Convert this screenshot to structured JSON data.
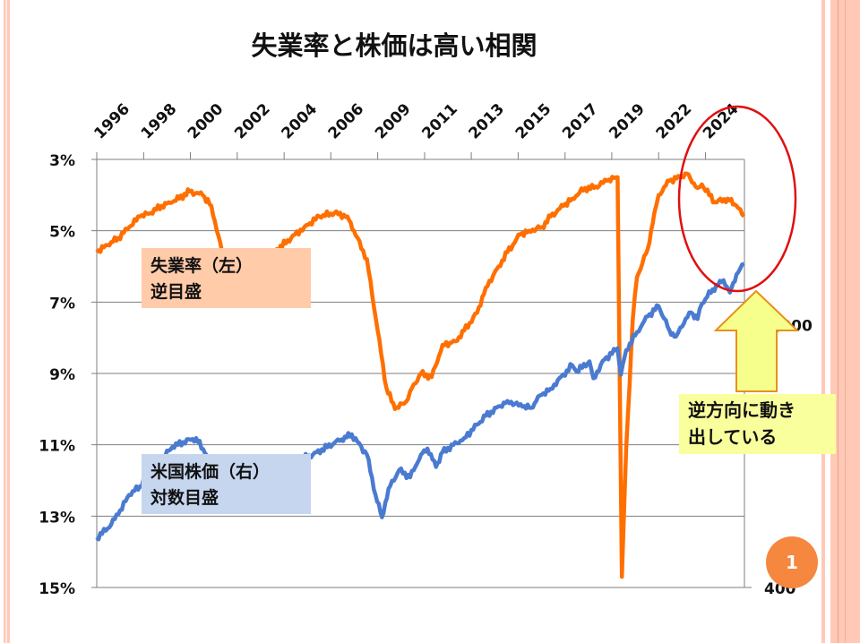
{
  "slide": {
    "title": "失業率と株価は高い相関",
    "page_number": "1",
    "unemployment_label": {
      "line1": "失業率（左）",
      "line2": "逆目盛"
    },
    "stock_label": {
      "line1": "米国株価（右）",
      "line2": "対数目盛"
    },
    "callout": {
      "line1": "逆方向に動き",
      "line2": "出している"
    }
  },
  "colors": {
    "unemployment": "#FF6F00",
    "stock": "#4A7BD0",
    "highlight": "#E01010",
    "arrow_fill": "#F6FF8C",
    "arrow_stroke": "#E8901A",
    "callout_bg": "#F9FF9C",
    "badge": "#F5873F",
    "border": "#FFC9B6"
  },
  "chart_data": {
    "type": "line",
    "title": "失業率と株価は高い相関",
    "x_tick_labels": [
      "1996",
      "1998",
      "2000",
      "2002",
      "2004",
      "2006",
      "2009",
      "2011",
      "2013",
      "2015",
      "2017",
      "2019",
      "2022",
      "2024"
    ],
    "x_tick_years": [
      1996.0,
      1998.17,
      2000.33,
      2002.5,
      2004.67,
      2006.83,
      2009.0,
      2011.17,
      2013.33,
      2015.5,
      2017.67,
      2019.83,
      2022.0,
      2024.17
    ],
    "xlim": [
      1996.0,
      2025.97
    ],
    "left_axis": {
      "label": "unemployment rate (inverted)",
      "ticks": [
        "3%",
        "5%",
        "7%",
        "9%",
        "11%",
        "13%",
        "15%"
      ],
      "tick_values": [
        3,
        5,
        7,
        9,
        11,
        13,
        15
      ],
      "ylim": [
        3,
        15
      ],
      "inverted": true
    },
    "right_axis": {
      "scale": "log",
      "ticks": [
        "4,000",
        "400"
      ],
      "tick_values": [
        4000,
        400
      ],
      "ylim": [
        400,
        17000
      ]
    },
    "grid": true,
    "series": [
      {
        "name": "失業率",
        "axis": "left",
        "points": [
          [
            1996.0,
            5.6
          ],
          [
            1996.5,
            5.4
          ],
          [
            1997.0,
            5.2
          ],
          [
            1997.5,
            4.9
          ],
          [
            1998.0,
            4.6
          ],
          [
            1998.5,
            4.5
          ],
          [
            1999.0,
            4.3
          ],
          [
            1999.5,
            4.2
          ],
          [
            2000.3,
            3.9
          ],
          [
            2000.9,
            4.0
          ],
          [
            2001.3,
            4.3
          ],
          [
            2001.8,
            5.6
          ],
          [
            2002.5,
            5.8
          ],
          [
            2003.5,
            6.2
          ],
          [
            2004.0,
            5.7
          ],
          [
            2005.0,
            5.2
          ],
          [
            2005.6,
            4.9
          ],
          [
            2006.3,
            4.6
          ],
          [
            2007.0,
            4.5
          ],
          [
            2007.6,
            4.6
          ],
          [
            2007.9,
            5.0
          ],
          [
            2008.5,
            5.8
          ],
          [
            2009.0,
            7.8
          ],
          [
            2009.4,
            9.4
          ],
          [
            2009.8,
            10.0
          ],
          [
            2010.3,
            9.8
          ],
          [
            2010.5,
            9.5
          ],
          [
            2011.0,
            9.0
          ],
          [
            2011.5,
            9.1
          ],
          [
            2012.0,
            8.2
          ],
          [
            2012.6,
            8.1
          ],
          [
            2013.0,
            7.8
          ],
          [
            2013.6,
            7.3
          ],
          [
            2014.0,
            6.6
          ],
          [
            2014.6,
            6.0
          ],
          [
            2015.0,
            5.6
          ],
          [
            2015.6,
            5.1
          ],
          [
            2016.0,
            5.0
          ],
          [
            2016.6,
            4.9
          ],
          [
            2017.0,
            4.6
          ],
          [
            2017.6,
            4.3
          ],
          [
            2018.0,
            4.1
          ],
          [
            2018.6,
            3.8
          ],
          [
            2019.0,
            3.8
          ],
          [
            2019.6,
            3.6
          ],
          [
            2020.1,
            3.5
          ],
          [
            2020.3,
            14.7
          ],
          [
            2020.5,
            11.1
          ],
          [
            2020.8,
            7.5
          ],
          [
            2021.0,
            6.3
          ],
          [
            2021.5,
            5.5
          ],
          [
            2021.8,
            4.5
          ],
          [
            2022.0,
            4.0
          ],
          [
            2022.5,
            3.6
          ],
          [
            2023.0,
            3.5
          ],
          [
            2023.3,
            3.4
          ],
          [
            2023.8,
            3.8
          ],
          [
            2024.0,
            3.7
          ],
          [
            2024.6,
            4.2
          ],
          [
            2025.2,
            4.1
          ],
          [
            2025.6,
            4.3
          ],
          [
            2025.95,
            4.6
          ]
        ]
      },
      {
        "name": "米国株価",
        "axis": "right",
        "points": [
          [
            1996.0,
            620
          ],
          [
            1996.5,
            670
          ],
          [
            1997.0,
            760
          ],
          [
            1997.5,
            900
          ],
          [
            1998.0,
            970
          ],
          [
            1998.5,
            1130
          ],
          [
            1998.7,
            990
          ],
          [
            1999.0,
            1230
          ],
          [
            1999.5,
            1370
          ],
          [
            2000.0,
            1430
          ],
          [
            2000.6,
            1480
          ],
          [
            2001.0,
            1300
          ],
          [
            2001.7,
            1050
          ],
          [
            2002.0,
            1140
          ],
          [
            2002.75,
            820
          ],
          [
            2003.2,
            850
          ],
          [
            2003.5,
            990
          ],
          [
            2004.0,
            1130
          ],
          [
            2005.0,
            1200
          ],
          [
            2006.0,
            1280
          ],
          [
            2007.0,
            1420
          ],
          [
            2007.8,
            1530
          ],
          [
            2008.5,
            1280
          ],
          [
            2008.9,
            900
          ],
          [
            2009.2,
            740
          ],
          [
            2009.5,
            950
          ],
          [
            2010.0,
            1120
          ],
          [
            2010.5,
            1050
          ],
          [
            2011.0,
            1280
          ],
          [
            2011.3,
            1350
          ],
          [
            2011.7,
            1150
          ],
          [
            2012.0,
            1310
          ],
          [
            2013.0,
            1480
          ],
          [
            2014.0,
            1800
          ],
          [
            2015.0,
            2050
          ],
          [
            2015.7,
            1950
          ],
          [
            2016.1,
            1930
          ],
          [
            2016.5,
            2150
          ],
          [
            2017.0,
            2280
          ],
          [
            2018.0,
            2800
          ],
          [
            2018.2,
            2650
          ],
          [
            2018.8,
            2900
          ],
          [
            2018.98,
            2500
          ],
          [
            2019.5,
            2950
          ],
          [
            2020.1,
            3250
          ],
          [
            2020.25,
            2580
          ],
          [
            2020.5,
            3200
          ],
          [
            2021.0,
            3750
          ],
          [
            2021.5,
            4300
          ],
          [
            2022.0,
            4700
          ],
          [
            2022.5,
            3800
          ],
          [
            2022.8,
            3600
          ],
          [
            2023.0,
            3900
          ],
          [
            2023.5,
            4450
          ],
          [
            2023.8,
            4200
          ],
          [
            2024.0,
            4800
          ],
          [
            2024.5,
            5450
          ],
          [
            2025.0,
            5900
          ],
          [
            2025.3,
            5300
          ],
          [
            2025.6,
            6200
          ],
          [
            2025.95,
            6800
          ]
        ]
      }
    ],
    "annotations": [
      "失業率（左） 逆目盛",
      "米国株価（右） 対数目盛",
      "逆方向に動き 出している"
    ]
  }
}
